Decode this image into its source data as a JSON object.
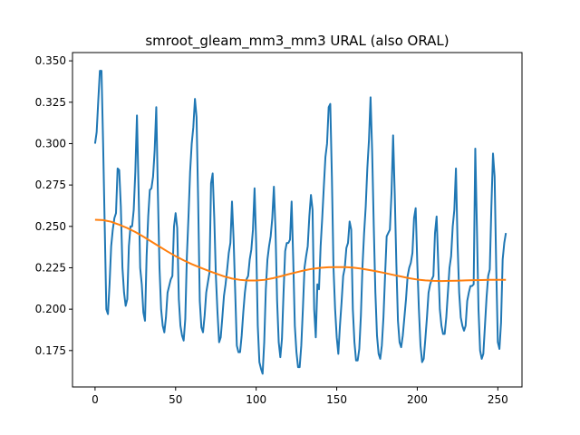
{
  "chart_data": {
    "type": "line",
    "title": "smroot_gleam_mm3_mm3 URAL (also ORAL)",
    "xlabel": "",
    "ylabel": "",
    "xlim": [
      -14,
      265
    ],
    "ylim": [
      0.153,
      0.355
    ],
    "xticks": [
      0,
      50,
      100,
      150,
      200,
      250
    ],
    "yticks": [
      0.175,
      0.2,
      0.225,
      0.25,
      0.275,
      0.3,
      0.325,
      0.35
    ],
    "ytick_labels": [
      "0.175",
      "0.200",
      "0.225",
      "0.250",
      "0.275",
      "0.300",
      "0.325",
      "0.350"
    ],
    "grid": false,
    "legend": "none",
    "series": [
      {
        "color": "#1f77b4",
        "points": [
          [
            0,
            0.3
          ],
          [
            1,
            0.307
          ],
          [
            2,
            0.326
          ],
          [
            3,
            0.344
          ],
          [
            4,
            0.344
          ],
          [
            5,
            0.3
          ],
          [
            6,
            0.25
          ],
          [
            7,
            0.2
          ],
          [
            8,
            0.197
          ],
          [
            9,
            0.215
          ],
          [
            10,
            0.238
          ],
          [
            11,
            0.248
          ],
          [
            12,
            0.255
          ],
          [
            13,
            0.258
          ],
          [
            14,
            0.285
          ],
          [
            15,
            0.284
          ],
          [
            16,
            0.262
          ],
          [
            17,
            0.225
          ],
          [
            18,
            0.21
          ],
          [
            19,
            0.202
          ],
          [
            20,
            0.206
          ],
          [
            21,
            0.238
          ],
          [
            22,
            0.25
          ],
          [
            23,
            0.25
          ],
          [
            24,
            0.26
          ],
          [
            25,
            0.283
          ],
          [
            26,
            0.317
          ],
          [
            27,
            0.273
          ],
          [
            28,
            0.225
          ],
          [
            29,
            0.215
          ],
          [
            30,
            0.198
          ],
          [
            31,
            0.193
          ],
          [
            32,
            0.232
          ],
          [
            33,
            0.256
          ],
          [
            34,
            0.272
          ],
          [
            35,
            0.273
          ],
          [
            36,
            0.28
          ],
          [
            37,
            0.296
          ],
          [
            38,
            0.322
          ],
          [
            39,
            0.27
          ],
          [
            40,
            0.225
          ],
          [
            41,
            0.2
          ],
          [
            42,
            0.19
          ],
          [
            43,
            0.186
          ],
          [
            44,
            0.195
          ],
          [
            45,
            0.21
          ],
          [
            46,
            0.214
          ],
          [
            47,
            0.218
          ],
          [
            48,
            0.22
          ],
          [
            49,
            0.25
          ],
          [
            50,
            0.258
          ],
          [
            51,
            0.249
          ],
          [
            52,
            0.206
          ],
          [
            53,
            0.19
          ],
          [
            54,
            0.184
          ],
          [
            55,
            0.181
          ],
          [
            56,
            0.194
          ],
          [
            57,
            0.232
          ],
          [
            58,
            0.256
          ],
          [
            59,
            0.283
          ],
          [
            60,
            0.3
          ],
          [
            61,
            0.31
          ],
          [
            62,
            0.327
          ],
          [
            63,
            0.316
          ],
          [
            64,
            0.265
          ],
          [
            65,
            0.205
          ],
          [
            66,
            0.189
          ],
          [
            67,
            0.186
          ],
          [
            68,
            0.196
          ],
          [
            69,
            0.21
          ],
          [
            70,
            0.216
          ],
          [
            71,
            0.222
          ],
          [
            72,
            0.276
          ],
          [
            73,
            0.282
          ],
          [
            74,
            0.255
          ],
          [
            75,
            0.22
          ],
          [
            76,
            0.198
          ],
          [
            77,
            0.18
          ],
          [
            78,
            0.183
          ],
          [
            79,
            0.195
          ],
          [
            80,
            0.208
          ],
          [
            81,
            0.215
          ],
          [
            82,
            0.224
          ],
          [
            83,
            0.234
          ],
          [
            84,
            0.24
          ],
          [
            85,
            0.265
          ],
          [
            86,
            0.242
          ],
          [
            87,
            0.21
          ],
          [
            88,
            0.178
          ],
          [
            89,
            0.174
          ],
          [
            90,
            0.174
          ],
          [
            91,
            0.184
          ],
          [
            92,
            0.198
          ],
          [
            93,
            0.21
          ],
          [
            94,
            0.218
          ],
          [
            95,
            0.22
          ],
          [
            96,
            0.23
          ],
          [
            97,
            0.236
          ],
          [
            98,
            0.248
          ],
          [
            99,
            0.273
          ],
          [
            100,
            0.24
          ],
          [
            101,
            0.19
          ],
          [
            102,
            0.168
          ],
          [
            103,
            0.164
          ],
          [
            104,
            0.161
          ],
          [
            105,
            0.18
          ],
          [
            106,
            0.212
          ],
          [
            107,
            0.23
          ],
          [
            108,
            0.238
          ],
          [
            109,
            0.244
          ],
          [
            110,
            0.255
          ],
          [
            111,
            0.274
          ],
          [
            112,
            0.248
          ],
          [
            113,
            0.205
          ],
          [
            114,
            0.18
          ],
          [
            115,
            0.171
          ],
          [
            116,
            0.182
          ],
          [
            117,
            0.21
          ],
          [
            118,
            0.235
          ],
          [
            119,
            0.24
          ],
          [
            120,
            0.24
          ],
          [
            121,
            0.242
          ],
          [
            122,
            0.265
          ],
          [
            123,
            0.23
          ],
          [
            124,
            0.19
          ],
          [
            125,
            0.174
          ],
          [
            126,
            0.165
          ],
          [
            127,
            0.165
          ],
          [
            128,
            0.178
          ],
          [
            129,
            0.2
          ],
          [
            130,
            0.225
          ],
          [
            131,
            0.232
          ],
          [
            132,
            0.238
          ],
          [
            133,
            0.256
          ],
          [
            134,
            0.269
          ],
          [
            135,
            0.26
          ],
          [
            136,
            0.2
          ],
          [
            137,
            0.183
          ],
          [
            138,
            0.215
          ],
          [
            139,
            0.212
          ],
          [
            140,
            0.238
          ],
          [
            141,
            0.255
          ],
          [
            142,
            0.274
          ],
          [
            143,
            0.292
          ],
          [
            144,
            0.3
          ],
          [
            145,
            0.322
          ],
          [
            146,
            0.324
          ],
          [
            147,
            0.28
          ],
          [
            148,
            0.225
          ],
          [
            149,
            0.2
          ],
          [
            150,
            0.183
          ],
          [
            151,
            0.173
          ],
          [
            152,
            0.19
          ],
          [
            153,
            0.204
          ],
          [
            154,
            0.22
          ],
          [
            155,
            0.225
          ],
          [
            156,
            0.237
          ],
          [
            157,
            0.24
          ],
          [
            158,
            0.253
          ],
          [
            159,
            0.248
          ],
          [
            160,
            0.2
          ],
          [
            161,
            0.18
          ],
          [
            162,
            0.169
          ],
          [
            163,
            0.169
          ],
          [
            164,
            0.176
          ],
          [
            165,
            0.196
          ],
          [
            166,
            0.226
          ],
          [
            167,
            0.246
          ],
          [
            168,
            0.262
          ],
          [
            169,
            0.285
          ],
          [
            170,
            0.302
          ],
          [
            171,
            0.328
          ],
          [
            172,
            0.295
          ],
          [
            173,
            0.25
          ],
          [
            174,
            0.21
          ],
          [
            175,
            0.184
          ],
          [
            176,
            0.173
          ],
          [
            177,
            0.17
          ],
          [
            178,
            0.178
          ],
          [
            179,
            0.195
          ],
          [
            180,
            0.22
          ],
          [
            181,
            0.244
          ],
          [
            182,
            0.246
          ],
          [
            183,
            0.248
          ],
          [
            184,
            0.27
          ],
          [
            185,
            0.305
          ],
          [
            186,
            0.27
          ],
          [
            187,
            0.228
          ],
          [
            188,
            0.193
          ],
          [
            189,
            0.18
          ],
          [
            190,
            0.177
          ],
          [
            191,
            0.184
          ],
          [
            192,
            0.195
          ],
          [
            193,
            0.206
          ],
          [
            194,
            0.22
          ],
          [
            195,
            0.225
          ],
          [
            196,
            0.228
          ],
          [
            197,
            0.234
          ],
          [
            198,
            0.255
          ],
          [
            199,
            0.261
          ],
          [
            200,
            0.228
          ],
          [
            201,
            0.2
          ],
          [
            202,
            0.178
          ],
          [
            203,
            0.168
          ],
          [
            204,
            0.17
          ],
          [
            205,
            0.182
          ],
          [
            206,
            0.195
          ],
          [
            207,
            0.21
          ],
          [
            208,
            0.215
          ],
          [
            209,
            0.218
          ],
          [
            210,
            0.22
          ],
          [
            211,
            0.246
          ],
          [
            212,
            0.256
          ],
          [
            213,
            0.228
          ],
          [
            214,
            0.2
          ],
          [
            215,
            0.19
          ],
          [
            216,
            0.185
          ],
          [
            217,
            0.185
          ],
          [
            218,
            0.195
          ],
          [
            219,
            0.21
          ],
          [
            220,
            0.225
          ],
          [
            221,
            0.232
          ],
          [
            222,
            0.25
          ],
          [
            223,
            0.26
          ],
          [
            224,
            0.285
          ],
          [
            225,
            0.24
          ],
          [
            226,
            0.21
          ],
          [
            227,
            0.195
          ],
          [
            228,
            0.19
          ],
          [
            229,
            0.187
          ],
          [
            230,
            0.19
          ],
          [
            231,
            0.205
          ],
          [
            232,
            0.21
          ],
          [
            233,
            0.214
          ],
          [
            234,
            0.214
          ],
          [
            235,
            0.215
          ],
          [
            236,
            0.297
          ],
          [
            237,
            0.25
          ],
          [
            238,
            0.2
          ],
          [
            239,
            0.175
          ],
          [
            240,
            0.17
          ],
          [
            241,
            0.173
          ],
          [
            242,
            0.19
          ],
          [
            243,
            0.207
          ],
          [
            244,
            0.22
          ],
          [
            245,
            0.224
          ],
          [
            246,
            0.262
          ],
          [
            247,
            0.294
          ],
          [
            248,
            0.28
          ],
          [
            249,
            0.225
          ],
          [
            250,
            0.18
          ],
          [
            251,
            0.176
          ],
          [
            252,
            0.192
          ],
          [
            253,
            0.23
          ],
          [
            254,
            0.24
          ],
          [
            255,
            0.246
          ]
        ]
      },
      {
        "color": "#ff7f0e",
        "points": [
          [
            0,
            0.254
          ],
          [
            5,
            0.2538
          ],
          [
            10,
            0.2528
          ],
          [
            15,
            0.251
          ],
          [
            20,
            0.249
          ],
          [
            25,
            0.2466
          ],
          [
            30,
            0.2438
          ],
          [
            35,
            0.2408
          ],
          [
            40,
            0.2378
          ],
          [
            45,
            0.2348
          ],
          [
            50,
            0.232
          ],
          [
            55,
            0.2295
          ],
          [
            60,
            0.2272
          ],
          [
            65,
            0.2252
          ],
          [
            70,
            0.2233
          ],
          [
            75,
            0.2215
          ],
          [
            80,
            0.2198
          ],
          [
            85,
            0.2185
          ],
          [
            90,
            0.2177
          ],
          [
            95,
            0.2173
          ],
          [
            100,
            0.2173
          ],
          [
            105,
            0.2177
          ],
          [
            110,
            0.2186
          ],
          [
            115,
            0.2198
          ],
          [
            120,
            0.2211
          ],
          [
            125,
            0.2223
          ],
          [
            130,
            0.2235
          ],
          [
            135,
            0.2244
          ],
          [
            140,
            0.225
          ],
          [
            145,
            0.2253
          ],
          [
            150,
            0.2254
          ],
          [
            155,
            0.2254
          ],
          [
            160,
            0.2251
          ],
          [
            165,
            0.2245
          ],
          [
            170,
            0.2237
          ],
          [
            175,
            0.2228
          ],
          [
            180,
            0.2218
          ],
          [
            185,
            0.2207
          ],
          [
            190,
            0.2197
          ],
          [
            195,
            0.2187
          ],
          [
            200,
            0.2179
          ],
          [
            205,
            0.2174
          ],
          [
            210,
            0.2171
          ],
          [
            215,
            0.217
          ],
          [
            220,
            0.2171
          ],
          [
            225,
            0.2172
          ],
          [
            230,
            0.2174
          ],
          [
            235,
            0.2175
          ],
          [
            240,
            0.2176
          ],
          [
            245,
            0.2177
          ],
          [
            250,
            0.2177
          ],
          [
            255,
            0.2177
          ]
        ]
      }
    ]
  }
}
